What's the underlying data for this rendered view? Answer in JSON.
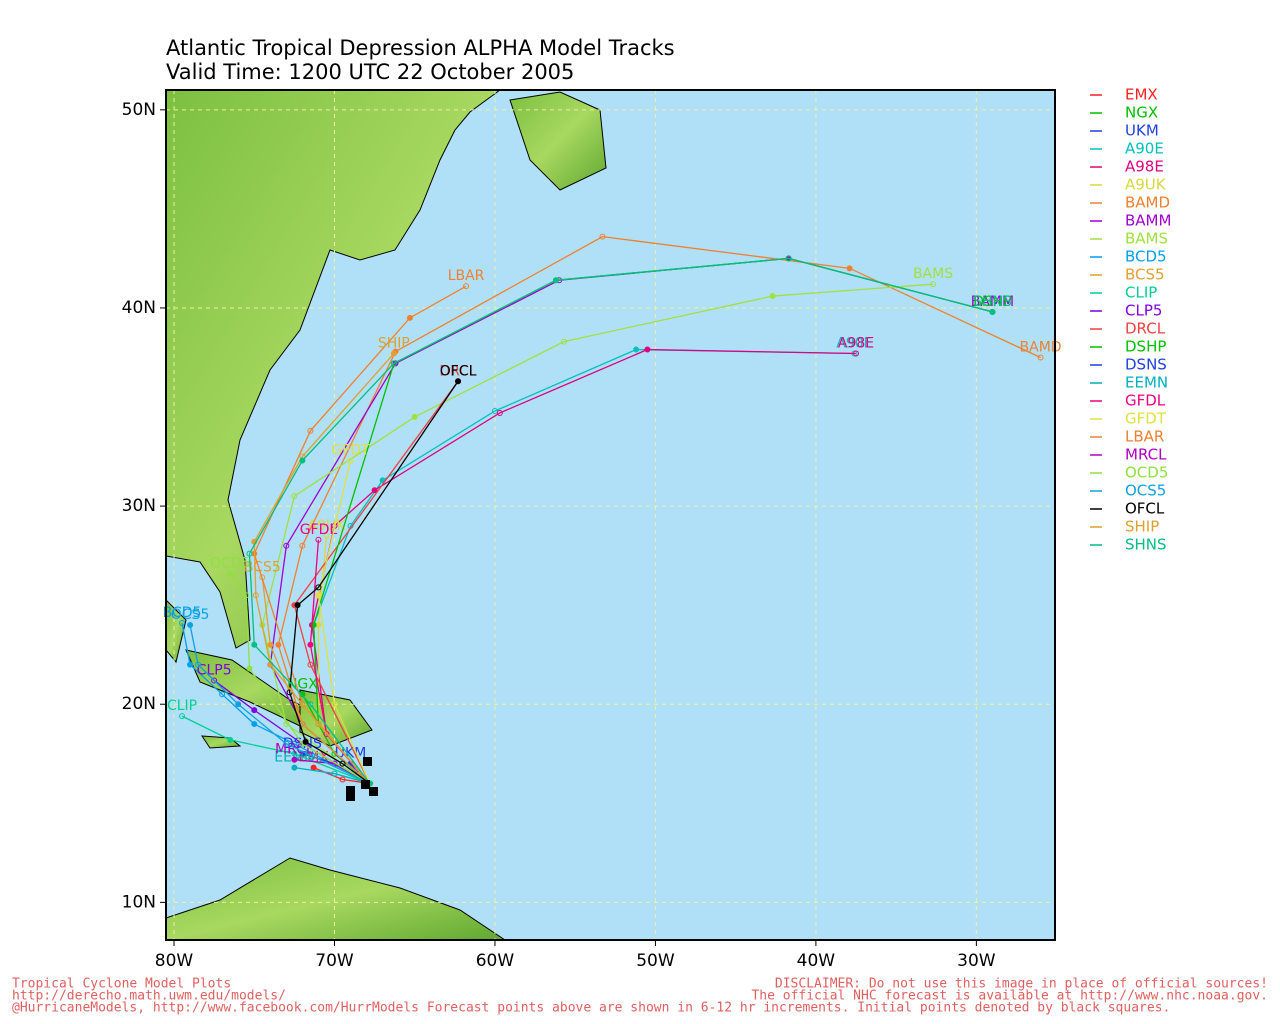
{
  "title": "Atlantic Tropical Depression ALPHA Model Tracks",
  "subtitle": "Valid Time: 1200 UTC 22 October 2005",
  "footer_left": [
    "Tropical Cyclone Model Plots",
    "http://derecho.math.uwm.edu/models/",
    "@HurricaneModels, http://www.facebook.com/HurrModels  Forecast points above are shown in 6-12 hr increments.  Initial points denoted by black squares."
  ],
  "footer_right": [
    "DISCLAIMER: Do not use this image in place of official sources!",
    "The official NHC forecast is available at http://www.nhc.noaa.gov.",
    ""
  ],
  "map": {
    "xlim": [
      -80.5,
      -25.1
    ],
    "ylim": [
      8.1,
      51.0
    ],
    "xticks": [
      {
        "value": -80,
        "label": "80W"
      },
      {
        "value": -70,
        "label": "70W"
      },
      {
        "value": -60,
        "label": "60W"
      },
      {
        "value": -50,
        "label": "50W"
      },
      {
        "value": -40,
        "label": "40W"
      },
      {
        "value": -30,
        "label": "30W"
      }
    ],
    "yticks": [
      {
        "value": 10,
        "label": "10N"
      },
      {
        "value": 20,
        "label": "20N"
      },
      {
        "value": 30,
        "label": "30N"
      },
      {
        "value": 40,
        "label": "40N"
      },
      {
        "value": 50,
        "label": "50N"
      }
    ],
    "grid": true,
    "tracks": [
      {
        "name": "EMX",
        "color": "#ff2020",
        "lon": [
          -67.8,
          -69.5,
          -71.3
        ],
        "lat": [
          16.0,
          16.2,
          16.8
        ]
      },
      {
        "name": "NGX",
        "color": "#00c000",
        "lon": [
          -67.8,
          -70.0,
          -72.0
        ],
        "lat": [
          16.0,
          17.5,
          20.5
        ]
      },
      {
        "name": "UKM",
        "color": "#2040e0",
        "lon": [
          -67.8,
          -68.5,
          -69.0
        ],
        "lat": [
          16.0,
          16.5,
          17.0
        ]
      },
      {
        "name": "A90E",
        "color": "#00c0c0",
        "lon": [
          -67.8,
          -71.0,
          -71.3,
          -69.0,
          -67.0,
          -60.0,
          -51.2,
          -37.6
        ],
        "lat": [
          16.0,
          19.0,
          24.0,
          29.0,
          31.3,
          34.8,
          37.9,
          37.7
        ]
      },
      {
        "name": "A98E",
        "color": "#e0007f",
        "lon": [
          -67.8,
          -70.5,
          -71.4,
          -70.0,
          -67.5,
          -59.7,
          -50.5,
          -37.5
        ],
        "lat": [
          16.0,
          18.5,
          24.0,
          29.0,
          30.8,
          34.7,
          37.9,
          37.7
        ]
      },
      {
        "name": "A9UK",
        "color": "#d8d840",
        "lon": [
          -67.8,
          -71.0,
          -71.0,
          -70.5
        ],
        "lat": [
          16.0,
          19.0,
          24.0,
          28.5
        ]
      },
      {
        "name": "BAMD",
        "color": "#f08030",
        "lon": [
          -67.8,
          -72.0,
          -73.5,
          -72.0,
          -66.2,
          -53.3,
          -37.9,
          -26.0
        ],
        "lat": [
          16.0,
          19.0,
          23.0,
          28.0,
          37.8,
          43.6,
          42.0,
          37.5
        ]
      },
      {
        "name": "BAMM",
        "color": "#a000d0",
        "lon": [
          -67.8,
          -72.0,
          -74.0,
          -73.0,
          -66.2,
          -56.0,
          -41.7,
          -29.0
        ],
        "lat": [
          16.0,
          19.0,
          22.0,
          28.0,
          37.2,
          41.4,
          42.5,
          39.8
        ]
      },
      {
        "name": "BAMS",
        "color": "#a0e040",
        "lon": [
          -67.8,
          -73.0,
          -74.5,
          -72.5,
          -65.0,
          -55.7,
          -42.7,
          -32.7
        ],
        "lat": [
          16.0,
          19.0,
          24.0,
          30.5,
          34.5,
          38.3,
          40.6,
          41.2
        ]
      },
      {
        "name": "BCD5",
        "color": "#00a0f0",
        "lon": [
          -67.8,
          -72.5,
          -75.0,
          -77.0,
          -79.0,
          -79.5
        ],
        "lat": [
          16.0,
          18.0,
          19.0,
          20.5,
          22.0,
          24.1
        ]
      },
      {
        "name": "BCS5",
        "color": "#e0a030",
        "lon": [
          -67.8,
          -72.0,
          -74.0,
          -74.5
        ],
        "lat": [
          16.0,
          19.0,
          23.0,
          26.4
        ]
      },
      {
        "name": "CLIP",
        "color": "#00d090",
        "lon": [
          -67.8,
          -72.5,
          -76.5,
          -79.5
        ],
        "lat": [
          16.0,
          17.5,
          18.2,
          19.4
        ]
      },
      {
        "name": "CLP5",
        "color": "#8000e0",
        "lon": [
          -67.8,
          -72.0,
          -75.0,
          -77.5
        ],
        "lat": [
          16.0,
          18.0,
          19.7,
          21.2
        ]
      },
      {
        "name": "DRCL",
        "color": "#f04040",
        "lon": [
          -67.8,
          -71.5,
          -72.5,
          -62.3
        ],
        "lat": [
          16.0,
          22.0,
          25.0,
          36.3
        ]
      },
      {
        "name": "DSHP",
        "color": "#00c000",
        "lon": [
          -67.8,
          -71.0,
          -71.3,
          -66.3,
          -56.2,
          -41.7,
          -29.0
        ],
        "lat": [
          16.0,
          19.0,
          24.0,
          37.2,
          41.4,
          42.5,
          39.8
        ]
      },
      {
        "name": "DSNS",
        "color": "#2040e0",
        "lon": [
          -67.8,
          -70.0,
          -72.0
        ],
        "lat": [
          16.0,
          17.0,
          17.5
        ]
      },
      {
        "name": "EEMN",
        "color": "#00b0c0",
        "lon": [
          -67.8,
          -70.0,
          -72.5
        ],
        "lat": [
          16.0,
          16.5,
          16.8
        ]
      },
      {
        "name": "GFDL",
        "color": "#f00080",
        "lon": [
          -67.8,
          -70.5,
          -71.5,
          -71.0
        ],
        "lat": [
          16.0,
          18.5,
          23.0,
          28.3
        ]
      },
      {
        "name": "GFDT",
        "color": "#e0e040",
        "lon": [
          -67.8,
          -70.0,
          -71.0,
          -69.0
        ],
        "lat": [
          16.0,
          20.0,
          25.5,
          32.3
        ]
      },
      {
        "name": "LBAR",
        "color": "#f08030",
        "lon": [
          -67.8,
          -72.0,
          -75.0,
          -71.5,
          -65.3,
          -61.8
        ],
        "lat": [
          16.0,
          20.0,
          27.6,
          33.8,
          39.5,
          41.1
        ]
      },
      {
        "name": "MRCL",
        "color": "#b000c0",
        "lon": [
          -67.8,
          -70.0,
          -72.5
        ],
        "lat": [
          16.0,
          17.0,
          17.2
        ]
      },
      {
        "name": "OCD5",
        "color": "#90e040",
        "lon": [
          -67.8,
          -72.0,
          -75.3,
          -75.5,
          -76.5
        ],
        "lat": [
          16.0,
          18.0,
          21.8,
          25.5,
          26.6
        ]
      },
      {
        "name": "OCS5",
        "color": "#10a0e0",
        "lon": [
          -67.8,
          -73.0,
          -76.0,
          -78.5,
          -79.0
        ],
        "lat": [
          16.0,
          18.0,
          20.0,
          22.0,
          24.0
        ]
      },
      {
        "name": "OFCL",
        "color": "#000000",
        "lon": [
          -67.8,
          -69.5,
          -71.8,
          -72.8,
          -72.3,
          -71.0,
          -62.3
        ],
        "lat": [
          16.0,
          17.0,
          18.1,
          20.6,
          25.0,
          25.9,
          36.3
        ]
      },
      {
        "name": "SHIP",
        "color": "#e0a030",
        "lon": [
          -67.8,
          -71.0,
          -74.0,
          -74.9,
          -75.0,
          -72.0,
          -66.3
        ],
        "lat": [
          16.0,
          19.0,
          22.0,
          25.5,
          28.2,
          32.5,
          37.7
        ]
      },
      {
        "name": "SHNS",
        "color": "#00c080",
        "lon": [
          -67.8,
          -71.5,
          -75.0,
          -75.3,
          -72.0,
          -66.3,
          -56.2,
          -41.7,
          -29.0
        ],
        "lat": [
          16.0,
          20.0,
          23.0,
          27.6,
          32.3,
          37.2,
          41.4,
          42.5,
          39.8
        ]
      }
    ]
  }
}
